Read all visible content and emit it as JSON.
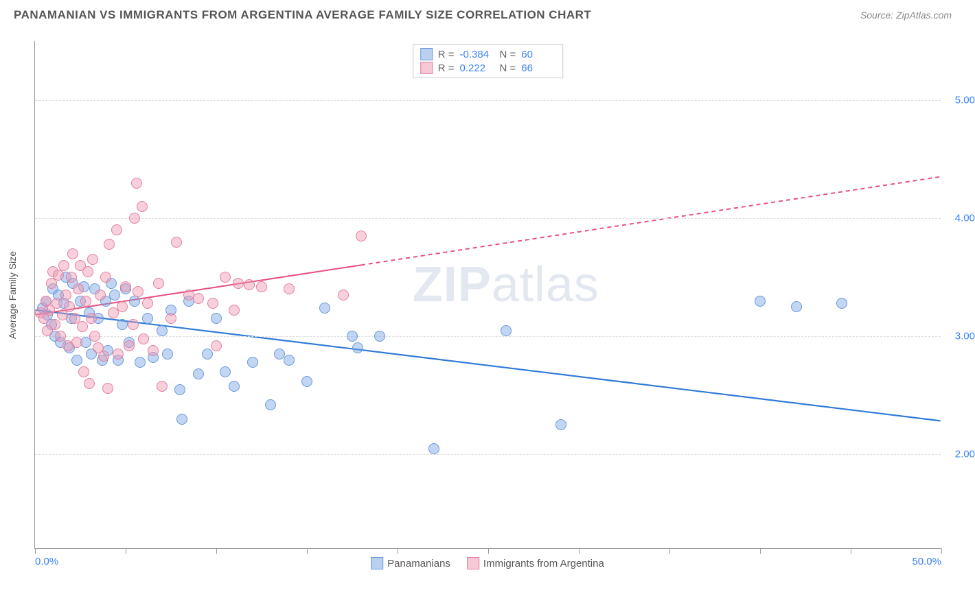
{
  "header": {
    "title": "PANAMANIAN VS IMMIGRANTS FROM ARGENTINA AVERAGE FAMILY SIZE CORRELATION CHART",
    "source": "Source: ZipAtlas.com"
  },
  "chart": {
    "type": "scatter",
    "ylabel": "Average Family Size",
    "xlim": [
      0,
      50
    ],
    "ylim": [
      1.2,
      5.5
    ],
    "background_color": "#ffffff",
    "grid_color": "#dddddd",
    "axis_color": "#999999",
    "tick_color": "#3b82f6",
    "tick_fontsize": 15,
    "x_ticks": [
      0,
      5,
      10,
      15,
      20,
      25,
      30,
      35,
      40,
      45,
      50
    ],
    "x_tick_labels_shown": {
      "0": "0.0%",
      "50": "50.0%"
    },
    "y_ticks": [
      2.0,
      3.0,
      4.0,
      5.0
    ],
    "marker_radius": 8,
    "marker_stroke_width": 1.2,
    "watermark": "ZIPatlas",
    "series": [
      {
        "name": "Panamanians",
        "fill_color": "rgba(120,165,230,0.45)",
        "stroke_color": "#6a99d8",
        "swatch_fill": "#b9d0f0",
        "swatch_border": "#6a99d8",
        "R": "-0.384",
        "N": "60",
        "trend": {
          "x1": 0,
          "y1": 3.22,
          "x2": 50,
          "y2": 2.28,
          "width": 2.2,
          "solid_until_x": 50,
          "color": "#2f7ad6"
        },
        "points": [
          [
            0.4,
            3.24
          ],
          [
            0.6,
            3.3
          ],
          [
            0.7,
            3.18
          ],
          [
            0.9,
            3.1
          ],
          [
            1.0,
            3.4
          ],
          [
            1.1,
            3.0
          ],
          [
            1.3,
            3.35
          ],
          [
            1.4,
            2.95
          ],
          [
            1.6,
            3.28
          ],
          [
            1.7,
            3.5
          ],
          [
            1.9,
            2.9
          ],
          [
            2.0,
            3.15
          ],
          [
            2.1,
            3.45
          ],
          [
            2.3,
            2.8
          ],
          [
            2.5,
            3.3
          ],
          [
            2.7,
            3.42
          ],
          [
            2.8,
            2.95
          ],
          [
            3.0,
            3.2
          ],
          [
            3.1,
            2.85
          ],
          [
            3.3,
            3.4
          ],
          [
            3.5,
            3.15
          ],
          [
            3.7,
            2.8
          ],
          [
            3.9,
            3.3
          ],
          [
            4.0,
            2.88
          ],
          [
            4.2,
            3.45
          ],
          [
            4.4,
            3.35
          ],
          [
            4.6,
            2.8
          ],
          [
            4.8,
            3.1
          ],
          [
            5.0,
            3.4
          ],
          [
            5.2,
            2.95
          ],
          [
            5.5,
            3.3
          ],
          [
            5.8,
            2.78
          ],
          [
            6.2,
            3.15
          ],
          [
            6.5,
            2.82
          ],
          [
            7.0,
            3.05
          ],
          [
            7.3,
            2.85
          ],
          [
            7.5,
            3.22
          ],
          [
            8.0,
            2.55
          ],
          [
            8.1,
            2.3
          ],
          [
            8.5,
            3.3
          ],
          [
            9.0,
            2.68
          ],
          [
            9.5,
            2.85
          ],
          [
            10.0,
            3.15
          ],
          [
            10.5,
            2.7
          ],
          [
            11.0,
            2.58
          ],
          [
            12.0,
            2.78
          ],
          [
            13.0,
            2.42
          ],
          [
            13.5,
            2.85
          ],
          [
            14.0,
            2.8
          ],
          [
            15.0,
            2.62
          ],
          [
            16.0,
            3.24
          ],
          [
            17.5,
            3.0
          ],
          [
            17.8,
            2.9
          ],
          [
            19.0,
            3.0
          ],
          [
            22.0,
            2.05
          ],
          [
            26.0,
            3.05
          ],
          [
            29.0,
            2.25
          ],
          [
            40.0,
            3.3
          ],
          [
            42.0,
            3.25
          ],
          [
            44.5,
            3.28
          ]
        ]
      },
      {
        "name": "Immigrants from Argentina",
        "fill_color": "rgba(240,150,175,0.45)",
        "stroke_color": "#e37ea0",
        "swatch_fill": "#f7c8d6",
        "swatch_border": "#e37ea0",
        "R": "0.222",
        "N": "66",
        "trend": {
          "x1": 0,
          "y1": 3.18,
          "x2": 50,
          "y2": 4.35,
          "width": 2,
          "solid_until_x": 18,
          "color": "#e84f7e"
        },
        "points": [
          [
            0.3,
            3.2
          ],
          [
            0.5,
            3.15
          ],
          [
            0.6,
            3.3
          ],
          [
            0.7,
            3.05
          ],
          [
            0.8,
            3.22
          ],
          [
            0.9,
            3.45
          ],
          [
            1.0,
            3.55
          ],
          [
            1.1,
            3.1
          ],
          [
            1.2,
            3.28
          ],
          [
            1.3,
            3.52
          ],
          [
            1.4,
            3.0
          ],
          [
            1.5,
            3.18
          ],
          [
            1.6,
            3.6
          ],
          [
            1.7,
            3.35
          ],
          [
            1.8,
            2.92
          ],
          [
            1.9,
            3.25
          ],
          [
            2.0,
            3.5
          ],
          [
            2.1,
            3.7
          ],
          [
            2.2,
            3.15
          ],
          [
            2.3,
            2.95
          ],
          [
            2.4,
            3.4
          ],
          [
            2.5,
            3.6
          ],
          [
            2.6,
            3.08
          ],
          [
            2.7,
            2.7
          ],
          [
            2.8,
            3.3
          ],
          [
            2.9,
            3.55
          ],
          [
            3.0,
            2.6
          ],
          [
            3.1,
            3.15
          ],
          [
            3.2,
            3.65
          ],
          [
            3.3,
            3.0
          ],
          [
            3.5,
            2.9
          ],
          [
            3.6,
            3.35
          ],
          [
            3.8,
            2.83
          ],
          [
            3.9,
            3.5
          ],
          [
            4.0,
            2.56
          ],
          [
            4.1,
            3.78
          ],
          [
            4.3,
            3.2
          ],
          [
            4.5,
            3.9
          ],
          [
            4.6,
            2.85
          ],
          [
            4.8,
            3.25
          ],
          [
            5.0,
            3.42
          ],
          [
            5.2,
            2.92
          ],
          [
            5.4,
            3.1
          ],
          [
            5.5,
            4.0
          ],
          [
            5.6,
            4.3
          ],
          [
            5.7,
            3.38
          ],
          [
            5.9,
            4.1
          ],
          [
            6.0,
            2.98
          ],
          [
            6.2,
            3.28
          ],
          [
            6.5,
            2.88
          ],
          [
            6.8,
            3.45
          ],
          [
            7.0,
            2.58
          ],
          [
            7.5,
            3.15
          ],
          [
            7.8,
            3.8
          ],
          [
            8.5,
            3.35
          ],
          [
            9.0,
            3.32
          ],
          [
            9.8,
            3.28
          ],
          [
            10.0,
            2.92
          ],
          [
            10.5,
            3.5
          ],
          [
            11.0,
            3.22
          ],
          [
            11.2,
            3.45
          ],
          [
            11.8,
            3.44
          ],
          [
            12.5,
            3.42
          ],
          [
            14.0,
            3.4
          ],
          [
            17.0,
            3.35
          ],
          [
            18.0,
            3.85
          ]
        ]
      }
    ],
    "bottom_legend": [
      {
        "label": "Panamanians",
        "fill": "#b9d0f0",
        "border": "#6a99d8"
      },
      {
        "label": "Immigrants from Argentina",
        "fill": "#f7c8d6",
        "border": "#e37ea0"
      }
    ]
  }
}
